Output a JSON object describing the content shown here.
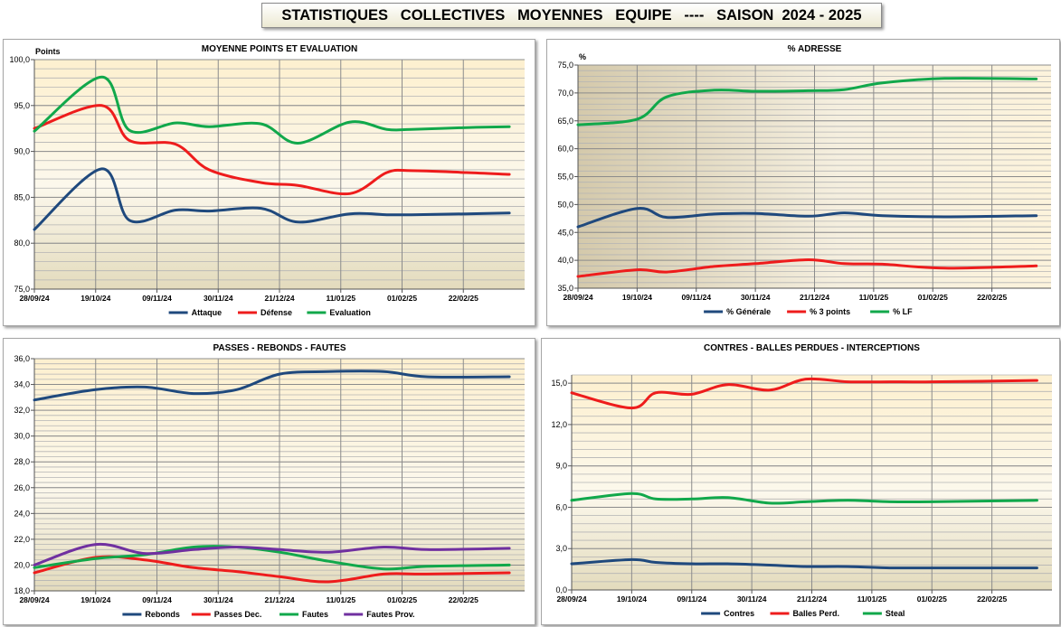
{
  "page_title": "STATISTIQUES   COLLECTIVES   MOYENNES   EQUIPE   ----   SAISON  2024 - 2025",
  "colors": {
    "blue": "#1f497d",
    "red": "#ee1c1c",
    "green": "#11a84b",
    "purple": "#7030a0"
  },
  "chart_data": [
    {
      "type": "line",
      "title": "MOYENNE   POINTS  ET  EVALUATION",
      "ylabel": "Points",
      "ylim": [
        75,
        100
      ],
      "yticks": [
        "75,0",
        "80,0",
        "85,0",
        "90,0",
        "95,0",
        "100,0"
      ],
      "xticks": [
        "28/09/24",
        "19/10/24",
        "09/11/24",
        "30/11/24",
        "21/12/24",
        "11/01/25",
        "01/02/25",
        "22/02/25"
      ],
      "grid": true,
      "legend": "bottom",
      "x": [
        0,
        1.1,
        1.55,
        2.3,
        2.85,
        3.7,
        4.3,
        5.15,
        5.75,
        6.15,
        7.05,
        7.75
      ],
      "series": [
        {
          "name": "Attaque",
          "color": "#1f497d",
          "values": [
            81.5,
            88.1,
            82.5,
            83.6,
            83.5,
            83.8,
            82.3,
            83.2,
            83.1,
            83.1,
            83.2,
            83.3
          ]
        },
        {
          "name": "Défense",
          "color": "#ee1c1c",
          "values": [
            92.5,
            95.0,
            91.2,
            90.8,
            88.0,
            86.6,
            86.3,
            85.4,
            87.7,
            87.9,
            87.7,
            87.5
          ]
        },
        {
          "name": "Evaluation",
          "color": "#11a84b",
          "values": [
            92.2,
            98.1,
            92.3,
            93.1,
            92.7,
            93.0,
            90.9,
            93.2,
            92.4,
            92.4,
            92.6,
            92.7
          ]
        }
      ]
    },
    {
      "type": "line",
      "title": "%  ADRESSE",
      "ylabel": "%",
      "ylim": [
        35,
        75
      ],
      "yticks": [
        "35,0",
        "40,0",
        "45,0",
        "50,0",
        "55,0",
        "60,0",
        "65,0",
        "70,0",
        "75,0"
      ],
      "xticks": [
        "28/09/24",
        "19/10/24",
        "09/11/24",
        "30/11/24",
        "21/12/24",
        "11/01/25",
        "01/02/25",
        "22/02/25"
      ],
      "grid": true,
      "legend": "bottom",
      "x": [
        0,
        1.0,
        1.5,
        2.3,
        3.0,
        3.9,
        4.5,
        5.15,
        6.2,
        7.75
      ],
      "series": [
        {
          "name": "% Générale",
          "color": "#1f497d",
          "values": [
            46.0,
            49.3,
            47.7,
            48.3,
            48.4,
            47.9,
            48.5,
            48.0,
            47.8,
            48.0
          ]
        },
        {
          "name": "% 3 points",
          "color": "#ee1c1c",
          "values": [
            37.1,
            38.3,
            37.9,
            38.9,
            39.4,
            40.1,
            39.4,
            39.3,
            38.6,
            39.0
          ]
        },
        {
          "name": "% LF",
          "color": "#11a84b",
          "values": [
            64.3,
            65.3,
            69.3,
            70.5,
            70.3,
            70.4,
            70.6,
            71.8,
            72.6,
            72.5
          ]
        }
      ]
    },
    {
      "type": "line",
      "title": "PASSES  -  REBONDS  -  FAUTES",
      "ylim": [
        18,
        36
      ],
      "yticks": [
        "18,0",
        "20,0",
        "22,0",
        "24,0",
        "26,0",
        "28,0",
        "30,0",
        "32,0",
        "34,0",
        "36,0"
      ],
      "xticks": [
        "28/09/24",
        "19/10/24",
        "09/11/24",
        "30/11/24",
        "21/12/24",
        "11/01/25",
        "01/02/25",
        "22/02/25"
      ],
      "grid": true,
      "legend": "bottom",
      "x": [
        0,
        1.0,
        1.8,
        2.6,
        3.3,
        4.0,
        4.8,
        5.7,
        6.4,
        7.75
      ],
      "series": [
        {
          "name": "Rebonds",
          "color": "#1f497d",
          "values": [
            32.8,
            33.6,
            33.8,
            33.3,
            33.6,
            34.8,
            35.0,
            35.0,
            34.6,
            34.6
          ]
        },
        {
          "name": "Passes Dec.",
          "color": "#ee1c1c",
          "values": [
            19.4,
            20.6,
            20.4,
            19.8,
            19.5,
            19.1,
            18.7,
            19.3,
            19.3,
            19.4
          ]
        },
        {
          "name": "Fautes",
          "color": "#11a84b",
          "values": [
            19.8,
            20.5,
            20.8,
            21.4,
            21.4,
            21.0,
            20.3,
            19.7,
            19.9,
            20.0
          ]
        },
        {
          "name": "Fautes Prov.",
          "color": "#7030a0",
          "values": [
            20.0,
            21.6,
            20.9,
            21.2,
            21.4,
            21.2,
            21.0,
            21.4,
            21.2,
            21.3
          ]
        }
      ]
    },
    {
      "type": "line",
      "title": "CONTRES  -  BALLES PERDUES  -  INTERCEPTIONS",
      "ylim": [
        0,
        15.6
      ],
      "yticks": [
        "0,0",
        "3,0",
        "6,0",
        "9,0",
        "12,0",
        "15,0"
      ],
      "xticks": [
        "28/09/24",
        "19/10/24",
        "09/11/24",
        "30/11/24",
        "21/12/24",
        "11/01/25",
        "01/02/25",
        "22/02/25"
      ],
      "grid": true,
      "legend": "bottom",
      "x": [
        0,
        1.0,
        1.4,
        2.0,
        2.6,
        3.3,
        3.9,
        4.6,
        5.3,
        6.0,
        7.75
      ],
      "series": [
        {
          "name": "Contres",
          "color": "#1f497d",
          "values": [
            1.9,
            2.2,
            2.0,
            1.9,
            1.9,
            1.8,
            1.7,
            1.7,
            1.6,
            1.6,
            1.6
          ]
        },
        {
          "name": "Balles Perd.",
          "color": "#ee1c1c",
          "values": [
            14.3,
            13.2,
            14.3,
            14.2,
            14.9,
            14.5,
            15.3,
            15.1,
            15.1,
            15.1,
            15.2
          ]
        },
        {
          "name": "Steal",
          "color": "#11a84b",
          "values": [
            6.5,
            7.0,
            6.6,
            6.6,
            6.7,
            6.3,
            6.4,
            6.5,
            6.4,
            6.4,
            6.5
          ]
        }
      ]
    }
  ]
}
